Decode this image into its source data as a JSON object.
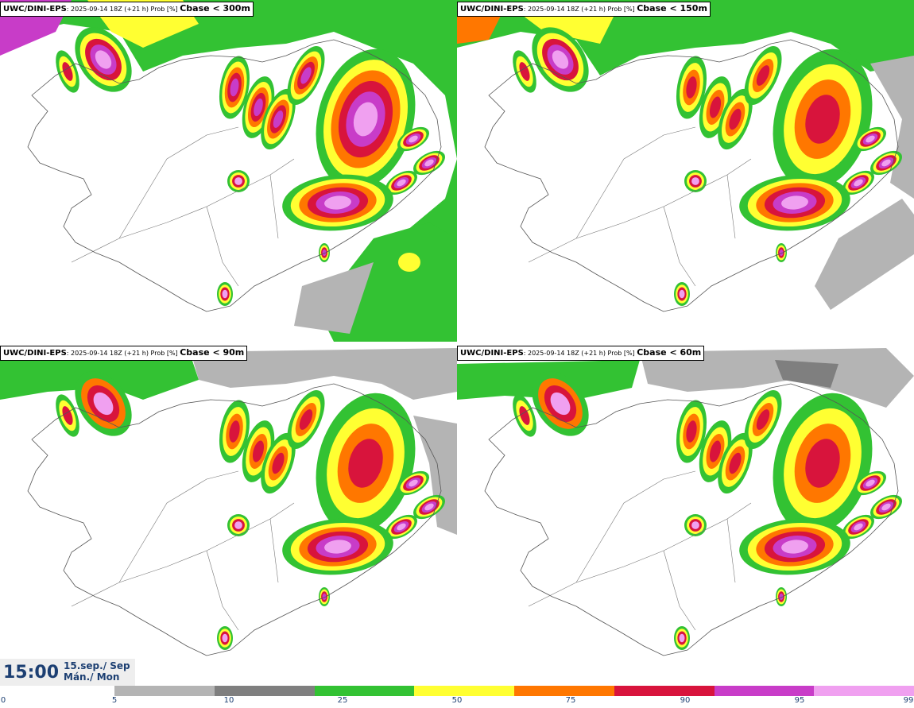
{
  "panels": [
    {
      "model": "UWC/DINI-EPS",
      "meta": ": 2025-09-14 18Z (+21 h) Prob [%]",
      "field": "Cbase < 300m"
    },
    {
      "model": "UWC/DINI-EPS",
      "meta": ": 2025-09-14 18Z (+21 h) Prob [%]",
      "field": "Cbase < 150m"
    },
    {
      "model": "UWC/DINI-EPS",
      "meta": ": 2025-09-14 18Z (+21 h) Prob [%]",
      "field": "Cbase < 90m"
    },
    {
      "model": "UWC/DINI-EPS",
      "meta": ": 2025-09-14 18Z (+21 h) Prob [%]",
      "field": "Cbase < 60m"
    }
  ],
  "valid_time": {
    "time": "15:00",
    "date_line1": "15.sep./ Sep",
    "date_line2": "Mán./ Mon"
  },
  "colorbar": {
    "ticks": [
      "0",
      "5",
      "10",
      "25",
      "50",
      "75",
      "90",
      "95",
      "99"
    ],
    "colors": [
      "#b4b4b4",
      "#7f7f7f",
      "#33c233",
      "#ffff32",
      "#ff7700",
      "#d8143c",
      "#c83cc8",
      "#f0a0f0"
    ]
  }
}
